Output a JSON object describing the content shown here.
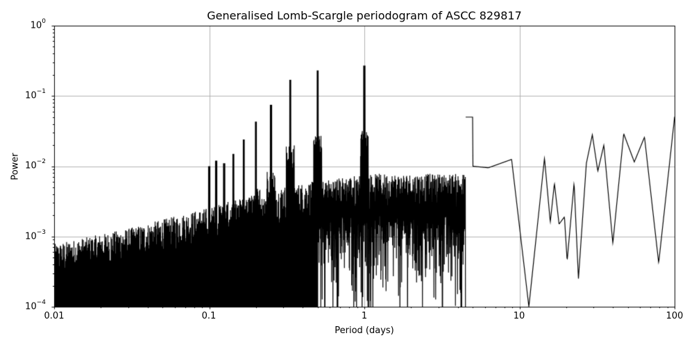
{
  "chart_data": {
    "type": "line",
    "title": "Generalised Lomb-Scargle periodogram of ASCC 829817",
    "xlabel": "Period (days)",
    "ylabel": "Power",
    "xscale": "log",
    "yscale": "log",
    "xlim": [
      0.01,
      100
    ],
    "ylim": [
      0.0001,
      1
    ],
    "grid": true,
    "legend": null,
    "x_ticks": [
      "0.01",
      "0.1",
      "1",
      "10",
      "100"
    ],
    "y_ticks": [
      {
        "base": "10",
        "exp": "0"
      },
      {
        "base": "10",
        "exp": "−1"
      },
      {
        "base": "10",
        "exp": "−2"
      },
      {
        "base": "10",
        "exp": "−3"
      },
      {
        "base": "10",
        "exp": "−4"
      }
    ],
    "line_color": "#000000",
    "grid_color": "#b0b0b0",
    "alias_peaks": [
      {
        "period": 1.0,
        "power": 0.27
      },
      {
        "period": 0.5,
        "power": 0.23
      },
      {
        "period": 0.333,
        "power": 0.17
      },
      {
        "period": 0.25,
        "power": 0.075
      },
      {
        "period": 0.2,
        "power": 0.043
      },
      {
        "period": 0.167,
        "power": 0.024
      },
      {
        "period": 0.143,
        "power": 0.015
      },
      {
        "period": 0.125,
        "power": 0.011
      },
      {
        "period": 0.111,
        "power": 0.012
      },
      {
        "period": 0.1,
        "power": 0.01
      }
    ],
    "long_period_envelope": [
      {
        "period": 5.0,
        "power": 0.01
      },
      {
        "period": 6.3,
        "power": 0.0095
      },
      {
        "period": 8.9,
        "power": 0.0125
      },
      {
        "period": 11.5,
        "power": 0.0001
      },
      {
        "period": 14.5,
        "power": 0.013
      },
      {
        "period": 15.8,
        "power": 0.0016
      },
      {
        "period": 16.8,
        "power": 0.0057
      },
      {
        "period": 18.0,
        "power": 0.0015
      },
      {
        "period": 19.5,
        "power": 0.0019
      },
      {
        "period": 20.3,
        "power": 0.00045
      },
      {
        "period": 22.5,
        "power": 0.0058
      },
      {
        "period": 24.0,
        "power": 0.00025
      },
      {
        "period": 27.0,
        "power": 0.011
      },
      {
        "period": 29.5,
        "power": 0.028
      },
      {
        "period": 32.0,
        "power": 0.0085
      },
      {
        "period": 35.0,
        "power": 0.02
      },
      {
        "period": 40.0,
        "power": 0.0008
      },
      {
        "period": 47.0,
        "power": 0.029
      },
      {
        "period": 55.0,
        "power": 0.0115
      },
      {
        "period": 64.0,
        "power": 0.026
      },
      {
        "period": 79.0,
        "power": 0.00042
      },
      {
        "period": 100.0,
        "power": 0.05
      }
    ],
    "noise_floor": [
      {
        "period": 0.01,
        "power": 0.0006
      },
      {
        "period": 0.03,
        "power": 0.001
      },
      {
        "period": 0.1,
        "power": 0.002
      },
      {
        "period": 0.3,
        "power": 0.004
      },
      {
        "period": 1.0,
        "power": 0.006
      },
      {
        "period": 4.0,
        "power": 0.006
      }
    ]
  }
}
